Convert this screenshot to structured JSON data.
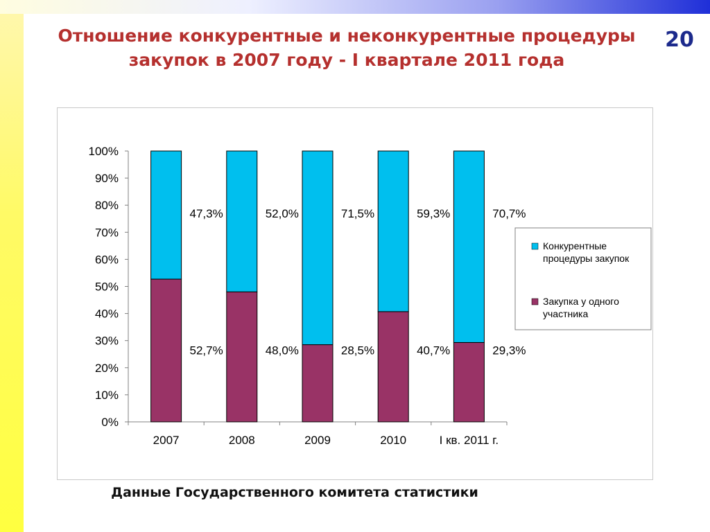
{
  "slide": {
    "title": "Отношение конкурентные и неконкурентные процедуры закупок в 2007 году - I квартале 2011 года",
    "number": "20",
    "source": "Данные Государственного комитета статистики"
  },
  "colors": {
    "competitive": "#00bfee",
    "single": "#993366",
    "title": "#b5302e",
    "number": "#1c2a8c"
  },
  "chart_data": {
    "type": "bar",
    "stacked": "percent",
    "categories": [
      "2007",
      "2008",
      "2009",
      "2010",
      "I кв. 2011 г."
    ],
    "series": [
      {
        "name": "Закупка у одного участника",
        "color": "#993366",
        "values": [
          52.7,
          48.0,
          28.5,
          40.7,
          29.3
        ],
        "labels": [
          "52,7%",
          "48,0%",
          "28,5%",
          "40,7%",
          "29,3%"
        ]
      },
      {
        "name": "Конкурентные процедуры закупок",
        "color": "#00bfee",
        "values": [
          47.3,
          52.0,
          71.5,
          59.3,
          70.7
        ],
        "labels": [
          "47,3%",
          "52,0%",
          "71,5%",
          "59,3%",
          "70,7%"
        ]
      }
    ],
    "ylim": [
      0,
      100
    ],
    "yticks": [
      "0%",
      "10%",
      "20%",
      "30%",
      "40%",
      "50%",
      "60%",
      "70%",
      "80%",
      "90%",
      "100%"
    ],
    "legend": {
      "position": "right",
      "items": [
        {
          "lines": [
            "Конкурентные",
            "процедуры закупок"
          ],
          "color": "#00bfee"
        },
        {
          "lines": [
            "Закупка у одного",
            "участника"
          ],
          "color": "#993366"
        }
      ]
    },
    "grid": false
  }
}
